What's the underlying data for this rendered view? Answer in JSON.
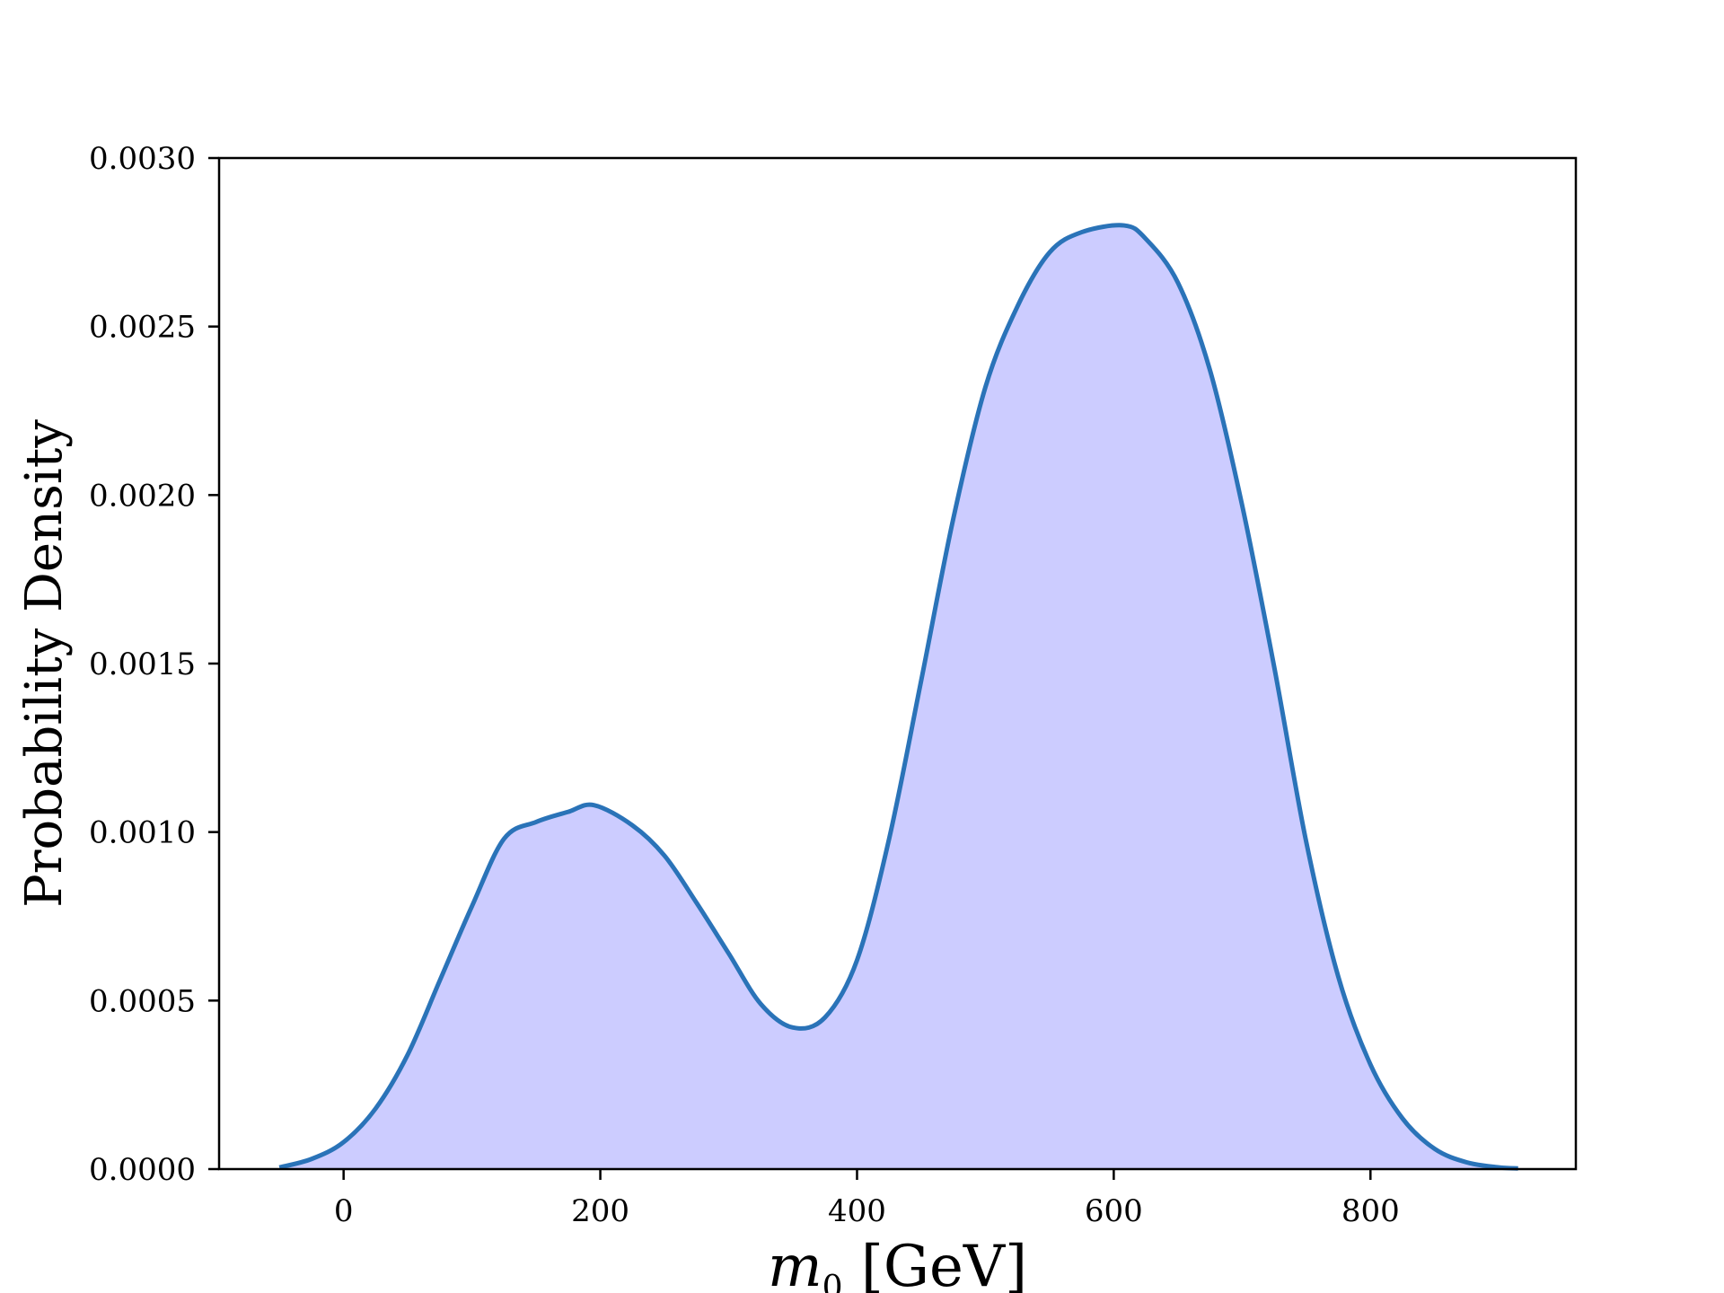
{
  "chart_data": {
    "type": "area",
    "title": "",
    "xlabel_var": "m",
    "xlabel_sub": "0",
    "xlabel_unit": " [GeV]",
    "ylabel": "Probability Density",
    "xlim": [
      -97,
      960
    ],
    "ylim": [
      0,
      0.003
    ],
    "xticks": [
      0,
      200,
      400,
      600,
      800
    ],
    "xtick_labels": [
      "0",
      "200",
      "400",
      "600",
      "800"
    ],
    "yticks": [
      0,
      0.0005,
      0.001,
      0.0015,
      0.002,
      0.0025,
      0.003
    ],
    "ytick_labels": [
      "0.0000",
      "0.0005",
      "0.0010",
      "0.0015",
      "0.0020",
      "0.0025",
      "0.0030"
    ],
    "grid": false,
    "line_color": "#2a73b8",
    "fill_color": "#ccccff",
    "series": [
      {
        "x": [
          -50,
          -25,
          0,
          25,
          50,
          75,
          100,
          125,
          150,
          175,
          195,
          225,
          250,
          275,
          300,
          325,
          350,
          375,
          400,
          425,
          450,
          475,
          500,
          525,
          550,
          575,
          608,
          625,
          650,
          675,
          700,
          725,
          750,
          775,
          800,
          825,
          850,
          875,
          900,
          915
        ],
        "y": [
          5e-06,
          3e-05,
          8e-05,
          0.00018,
          0.00034,
          0.00056,
          0.00078,
          0.00098,
          0.00103,
          0.00106,
          0.00108,
          0.00102,
          0.00093,
          0.00079,
          0.00064,
          0.00049,
          0.00042,
          0.00045,
          0.00062,
          0.00098,
          0.00145,
          0.00193,
          0.00232,
          0.00256,
          0.00272,
          0.00278,
          0.0028,
          0.00276,
          0.00263,
          0.00237,
          0.00197,
          0.00149,
          0.00097,
          0.00057,
          0.00031,
          0.00015,
          6e-05,
          2e-05,
          5e-06,
          2e-06
        ]
      }
    ]
  }
}
